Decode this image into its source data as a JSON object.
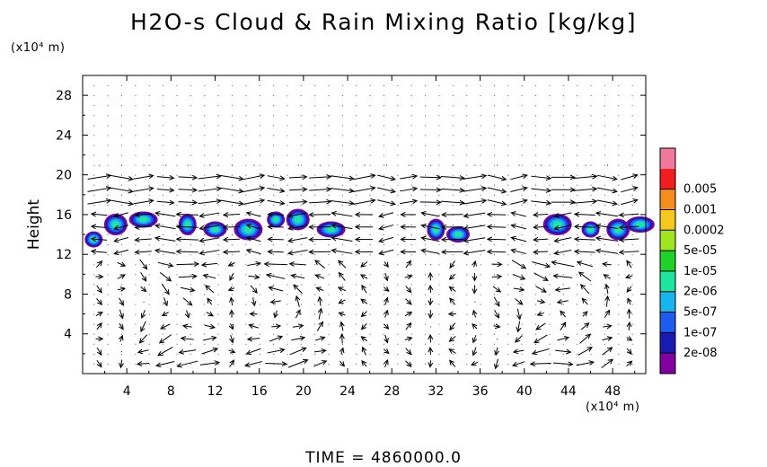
{
  "chart_data": {
    "type": "heatmap",
    "title": "H2O-s Cloud & Rain Mixing Ratio [kg/kg]",
    "ylabel": "Height",
    "xlabel": "",
    "x_unit": "(x10⁴ m)",
    "y_unit": "(x10⁴ m)",
    "footer": "TIME  =  4860000.0",
    "xlim": [
      0,
      51
    ],
    "ylim": [
      0,
      30
    ],
    "x_ticks": [
      4,
      8,
      12,
      16,
      20,
      24,
      28,
      32,
      36,
      40,
      44,
      48
    ],
    "y_ticks": [
      4,
      8,
      12,
      16,
      20,
      24,
      28
    ],
    "colorbar": {
      "labels": [
        "2e-08",
        "1e-07",
        "5e-07",
        "2e-06",
        "1e-05",
        "5e-05",
        "0.0002",
        "0.001",
        "0.005"
      ],
      "colors": [
        "#8000a0",
        "#1a1ab4",
        "#1e5cf0",
        "#18b4f0",
        "#1ee6a0",
        "#1ed228",
        "#a0e61e",
        "#f5c81e",
        "#f58c1e",
        "#f01e1e",
        "#f0789a"
      ]
    },
    "cloud_regions": [
      {
        "x": 1,
        "y": 13.5
      },
      {
        "x": 3,
        "y": 15
      },
      {
        "x": 5.5,
        "y": 15.5
      },
      {
        "x": 9.5,
        "y": 15
      },
      {
        "x": 12,
        "y": 14.5
      },
      {
        "x": 15,
        "y": 14.5
      },
      {
        "x": 17.5,
        "y": 15.5
      },
      {
        "x": 19.5,
        "y": 15.5
      },
      {
        "x": 22.5,
        "y": 14.5
      },
      {
        "x": 32,
        "y": 14.5
      },
      {
        "x": 34,
        "y": 14
      },
      {
        "x": 43,
        "y": 15
      },
      {
        "x": 46,
        "y": 14.5
      },
      {
        "x": 48.5,
        "y": 14.5
      },
      {
        "x": 50.5,
        "y": 15
      }
    ],
    "wind_field": "vectors"
  }
}
